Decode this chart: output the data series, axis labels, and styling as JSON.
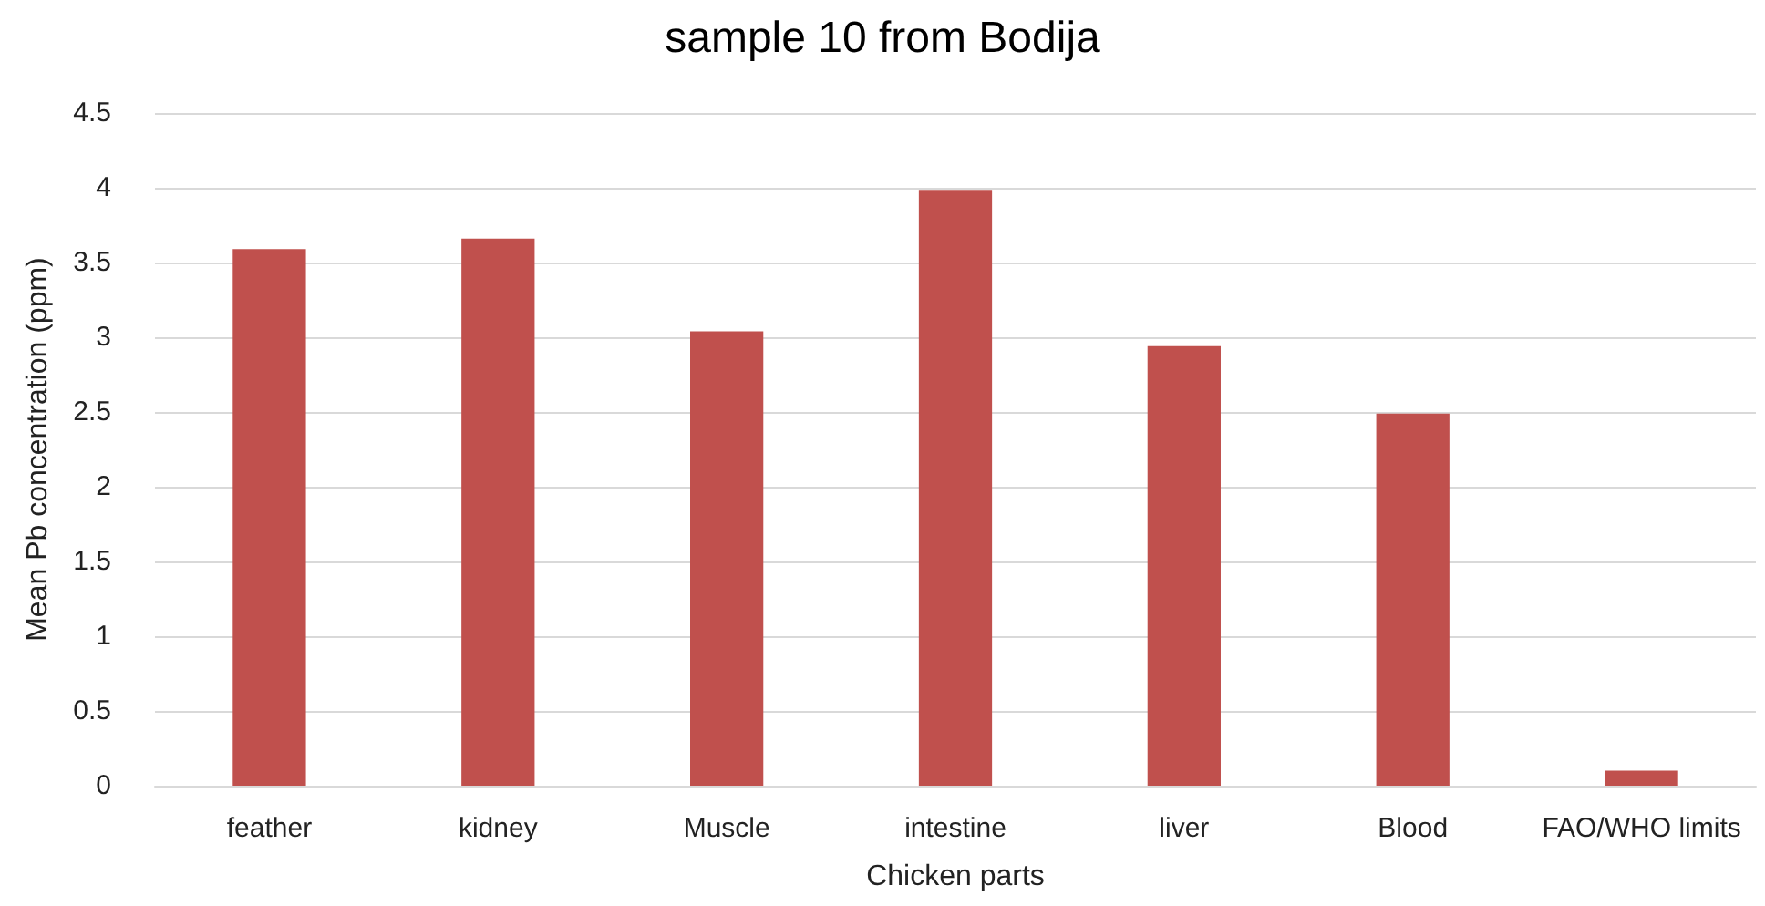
{
  "chart_data": {
    "type": "bar",
    "title": "sample 10 from Bodija",
    "xlabel": "Chicken parts",
    "ylabel": "Mean Pb concentration (ppm)",
    "categories": [
      "feather",
      "kidney",
      "Muscle",
      "intestine",
      "liver",
      "Blood",
      "FAO/WHO limits"
    ],
    "values": [
      3.59,
      3.66,
      3.04,
      3.98,
      2.94,
      2.49,
      0.1
    ],
    "color": "#c0504d",
    "ylim": [
      0,
      4.5
    ],
    "yticks": [
      0,
      0.5,
      1,
      1.5,
      2,
      2.5,
      3,
      3.5,
      4,
      4.5
    ],
    "grid": "y"
  }
}
